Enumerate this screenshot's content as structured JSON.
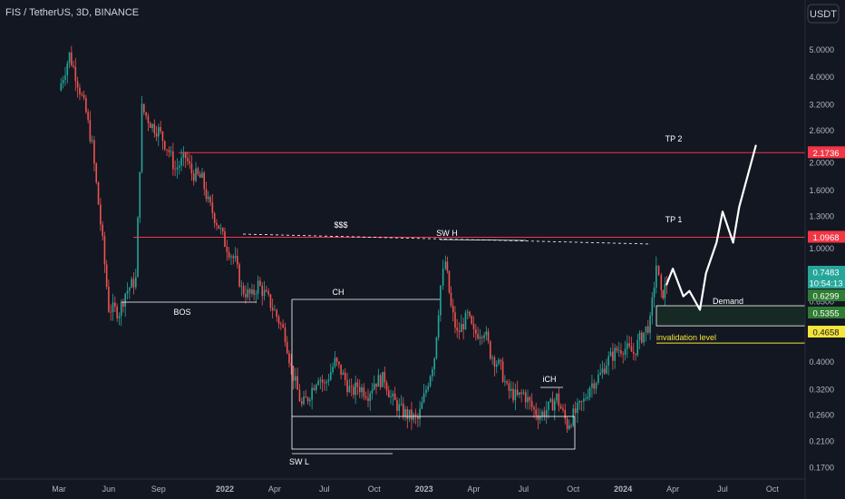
{
  "header": {
    "symbol_line": "FIS / TetherUS, 3D, BINANCE",
    "currency_button": "USDT"
  },
  "chart_data": {
    "type": "candlestick",
    "title": "FIS / TetherUS, 3D, BINANCE",
    "y_scale": "log",
    "y_ticks": [
      "5.0000",
      "4.0000",
      "3.2000",
      "2.6000",
      "2.0000",
      "1.6000",
      "1.3000",
      "1.0000",
      "0.8000",
      "0.6500",
      "0.5200",
      "0.4000",
      "0.3200",
      "0.2600",
      "0.2100",
      "0.1700"
    ],
    "x_ticks": [
      "Mar",
      "Jun",
      "Sep",
      "2022",
      "Apr",
      "Jul",
      "Oct",
      "2023",
      "Apr",
      "Jul",
      "Oct",
      "2024",
      "Apr",
      "Jul",
      "Oct"
    ],
    "colors": {
      "up": "#26a69a",
      "down": "#ef5350",
      "background": "#131722",
      "level_red": "#f23645",
      "level_yellow": "#f5e43b",
      "demand_green": "#2e7d32"
    },
    "price_labels": [
      {
        "value": "2.1736",
        "color": "#f23645"
      },
      {
        "value": "1.0968",
        "color": "#f23645"
      },
      {
        "value": "0.7483",
        "color": "#26a69a"
      },
      {
        "value": "10:54:13",
        "color": "#26a69a"
      },
      {
        "value": "0.6299",
        "color": "#2e7d32"
      },
      {
        "value": "0.5355",
        "color": "#2e7d32"
      },
      {
        "value": "0.4658",
        "color": "#f5e43b"
      }
    ],
    "annotations": {
      "tp2": "TP 2",
      "tp1": "TP 1",
      "sss": "$$$",
      "swh": "SW H",
      "bos": "BOS",
      "ch": "CH",
      "ich": "iCH",
      "swl": "SW L",
      "demand": "Demand",
      "invalidation": "invalidation level"
    },
    "levels": {
      "tp2": 2.1736,
      "tp1": 1.0968,
      "current": 0.7483,
      "demand_top": 0.6299,
      "demand_bottom": 0.5355,
      "invalidation": 0.4658
    },
    "swing_points": {
      "swing_high": 0.98,
      "swing_low": 0.2,
      "all_time_high": 4.9
    },
    "price_path": [
      [
        "2021-03",
        3.6
      ],
      [
        "2021-03-20",
        4.8
      ],
      [
        "2021-04",
        4.1
      ],
      [
        "2021-04-20",
        3.0
      ],
      [
        "2021-05",
        2.3
      ],
      [
        "2021-05-20",
        1.05
      ],
      [
        "2021-06",
        0.62
      ],
      [
        "2021-06-20",
        0.6
      ],
      [
        "2021-07",
        0.7
      ],
      [
        "2021-07-20",
        0.78
      ],
      [
        "2021-08",
        3.1
      ],
      [
        "2021-08-20",
        2.7
      ],
      [
        "2021-09",
        2.6
      ],
      [
        "2021-09-20",
        2.2
      ],
      [
        "2021-10",
        1.9
      ],
      [
        "2021-10-20",
        2.1
      ],
      [
        "2021-11",
        1.85
      ],
      [
        "2021-11-20",
        1.75
      ],
      [
        "2021-12",
        1.45
      ],
      [
        "2021-12-20",
        1.2
      ],
      [
        "2022-01",
        1.05
      ],
      [
        "2022-01-20",
        0.9
      ],
      [
        "2022-02",
        0.72
      ],
      [
        "2022-02-20",
        0.68
      ],
      [
        "2022-03",
        0.75
      ],
      [
        "2022-03-20",
        0.66
      ],
      [
        "2022-04",
        0.6
      ],
      [
        "2022-04-20",
        0.5
      ],
      [
        "2022-05",
        0.38
      ],
      [
        "2022-05-20",
        0.28
      ],
      [
        "2022-06",
        0.3
      ],
      [
        "2022-06-20",
        0.36
      ],
      [
        "2022-07",
        0.33
      ],
      [
        "2022-07-20",
        0.4
      ],
      [
        "2022-08",
        0.37
      ],
      [
        "2022-08-20",
        0.31
      ],
      [
        "2022-09",
        0.33
      ],
      [
        "2022-09-20",
        0.31
      ],
      [
        "2022-10",
        0.34
      ],
      [
        "2022-10-20",
        0.35
      ],
      [
        "2022-11",
        0.3
      ],
      [
        "2022-11-20",
        0.27
      ],
      [
        "2022-12",
        0.26
      ],
      [
        "2022-12-20",
        0.25
      ],
      [
        "2023-01",
        0.3
      ],
      [
        "2023-01-20",
        0.42
      ],
      [
        "2023-02",
        0.74
      ],
      [
        "2023-02-10",
        0.9
      ],
      [
        "2023-02-20",
        0.62
      ],
      [
        "2023-03",
        0.5
      ],
      [
        "2023-03-20",
        0.58
      ],
      [
        "2023-04",
        0.5
      ],
      [
        "2023-04-20",
        0.52
      ],
      [
        "2023-05",
        0.43
      ],
      [
        "2023-05-20",
        0.38
      ],
      [
        "2023-06",
        0.32
      ],
      [
        "2023-06-20",
        0.3
      ],
      [
        "2023-07",
        0.31
      ],
      [
        "2023-07-20",
        0.27
      ],
      [
        "2023-08",
        0.26
      ],
      [
        "2023-08-20",
        0.28
      ],
      [
        "2023-09",
        0.3
      ],
      [
        "2023-09-20",
        0.24
      ],
      [
        "2023-10",
        0.26
      ],
      [
        "2023-10-20",
        0.29
      ],
      [
        "2023-11",
        0.33
      ],
      [
        "2023-11-20",
        0.36
      ],
      [
        "2023-12",
        0.4
      ],
      [
        "2023-12-20",
        0.44
      ],
      [
        "2024-01",
        0.45
      ],
      [
        "2024-01-20",
        0.43
      ],
      [
        "2024-02",
        0.48
      ],
      [
        "2024-02-20",
        0.55
      ],
      [
        "2024-03",
        0.88
      ],
      [
        "2024-03-10",
        0.68
      ],
      [
        "2024-03-20",
        0.75
      ]
    ],
    "projection_path": [
      [
        "2024-03-20",
        0.75
      ],
      [
        "2024-04",
        0.85
      ],
      [
        "2024-04-20",
        0.68
      ],
      [
        "2024-05",
        0.71
      ],
      [
        "2024-05-20",
        0.61
      ],
      [
        "2024-06",
        0.82
      ],
      [
        "2024-06-20",
        1.05
      ],
      [
        "2024-07",
        1.35
      ],
      [
        "2024-07-20",
        1.05
      ],
      [
        "2024-08",
        1.4
      ],
      [
        "2024-09",
        2.3
      ]
    ]
  }
}
